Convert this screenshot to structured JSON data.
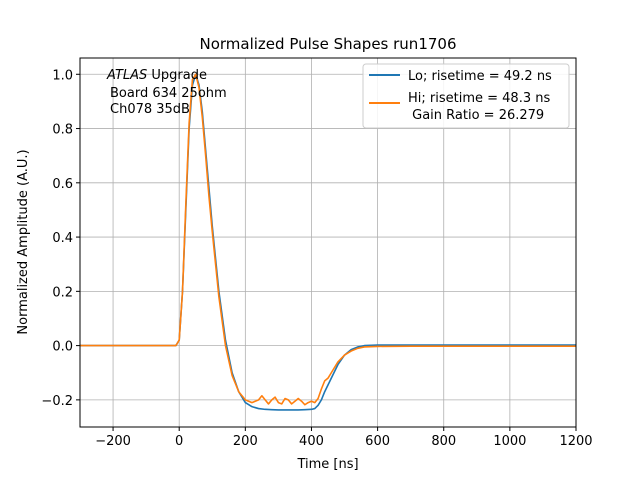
{
  "chart_data": {
    "type": "line",
    "title": "Normalized Pulse Shapes run1706",
    "xlabel": "Time [ns]",
    "ylabel": "Normalized Amplitude (A.U.)",
    "xlim": [
      -300,
      1200
    ],
    "ylim": [
      -0.3,
      1.06
    ],
    "xticks": [
      -200,
      0,
      200,
      400,
      600,
      800,
      1000,
      1200
    ],
    "xtick_labels": [
      "−200",
      "0",
      "200",
      "400",
      "600",
      "800",
      "1000",
      "1200"
    ],
    "yticks": [
      -0.2,
      0.0,
      0.2,
      0.4,
      0.6,
      0.8,
      1.0
    ],
    "ytick_labels": [
      "−0.2",
      "0.0",
      "0.2",
      "0.4",
      "0.6",
      "0.8",
      "1.0"
    ],
    "grid": true,
    "legend_position": "top-right",
    "annotation": {
      "line1_italic": "ATLAS",
      "line1_rest": " Upgrade",
      "line2": "Board 634 25ohm",
      "line3": "Ch078 35dB"
    },
    "series": [
      {
        "name": "Lo; risetime = 49.2 ns",
        "color": "#1f77b4",
        "x": [
          -300,
          -200,
          -100,
          -10,
          0,
          10,
          20,
          30,
          40,
          50,
          60,
          70,
          80,
          90,
          100,
          120,
          140,
          160,
          180,
          200,
          220,
          240,
          260,
          280,
          300,
          320,
          340,
          360,
          380,
          400,
          410,
          420,
          430,
          440,
          460,
          480,
          500,
          520,
          540,
          560,
          600,
          700,
          800,
          900,
          1000,
          1100,
          1200
        ],
        "y": [
          0.0,
          0.0,
          0.0,
          0.0,
          0.02,
          0.2,
          0.5,
          0.8,
          0.96,
          1.0,
          0.96,
          0.86,
          0.72,
          0.58,
          0.44,
          0.2,
          0.02,
          -0.1,
          -0.17,
          -0.21,
          -0.225,
          -0.232,
          -0.235,
          -0.236,
          -0.237,
          -0.237,
          -0.237,
          -0.237,
          -0.236,
          -0.235,
          -0.232,
          -0.22,
          -0.2,
          -0.17,
          -0.12,
          -0.07,
          -0.035,
          -0.015,
          -0.005,
          0.0,
          0.002,
          0.002,
          0.002,
          0.002,
          0.002,
          0.002,
          0.002
        ]
      },
      {
        "name": "Hi; risetime = 48.3 ns\n Gain Ratio = 26.279",
        "color": "#ff7f0e",
        "x": [
          -300,
          -200,
          -100,
          -10,
          0,
          10,
          20,
          30,
          40,
          50,
          60,
          70,
          80,
          90,
          100,
          120,
          140,
          160,
          180,
          200,
          220,
          240,
          250,
          260,
          270,
          280,
          290,
          300,
          310,
          320,
          330,
          340,
          350,
          360,
          370,
          380,
          390,
          400,
          410,
          420,
          430,
          440,
          450,
          460,
          480,
          500,
          520,
          540,
          560,
          600,
          700,
          800,
          900,
          1000,
          1100,
          1200
        ],
        "y": [
          0.0,
          0.0,
          0.0,
          0.0,
          0.02,
          0.2,
          0.52,
          0.82,
          0.98,
          1.0,
          0.95,
          0.84,
          0.7,
          0.55,
          0.42,
          0.18,
          0.0,
          -0.11,
          -0.17,
          -0.2,
          -0.21,
          -0.2,
          -0.185,
          -0.2,
          -0.215,
          -0.2,
          -0.19,
          -0.21,
          -0.215,
          -0.195,
          -0.2,
          -0.215,
          -0.205,
          -0.195,
          -0.205,
          -0.218,
          -0.21,
          -0.205,
          -0.21,
          -0.195,
          -0.16,
          -0.13,
          -0.12,
          -0.1,
          -0.06,
          -0.035,
          -0.02,
          -0.01,
          -0.005,
          -0.003,
          -0.002,
          -0.002,
          -0.002,
          -0.002,
          -0.002,
          -0.002
        ]
      }
    ]
  }
}
